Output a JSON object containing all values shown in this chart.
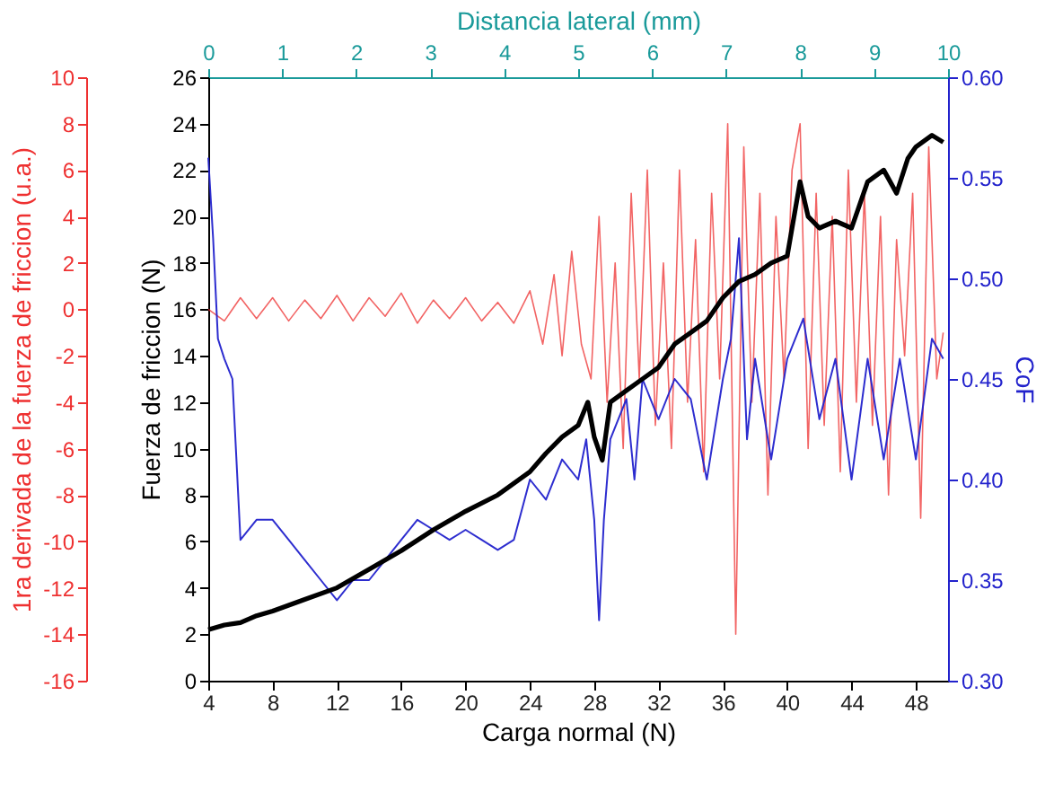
{
  "chart_data": {
    "type": "line",
    "xlabel": "Carga normal (N)",
    "x2label": "Distancia lateral (mm)",
    "ylabel": "Fuerza de friccion (N)",
    "y2label": "CoF",
    "y3label": "1ra derivada de la fuerza de friccion (u.a.)",
    "xlim": [
      4,
      50
    ],
    "xticks": [
      4,
      8,
      12,
      16,
      20,
      24,
      28,
      32,
      36,
      40,
      44,
      48
    ],
    "x2lim": [
      0,
      10
    ],
    "x2ticks": [
      0,
      1,
      2,
      3,
      4,
      5,
      6,
      7,
      8,
      9,
      10
    ],
    "ylim": [
      0,
      26
    ],
    "yticks": [
      0,
      2,
      4,
      6,
      8,
      10,
      12,
      14,
      16,
      18,
      20,
      22,
      24,
      26
    ],
    "y2lim": [
      0.3,
      0.6
    ],
    "y2ticks": [
      {
        "value": 0.3,
        "label": "0.30"
      },
      {
        "value": 0.35,
        "label": "0.35"
      },
      {
        "value": 0.4,
        "label": "0.40"
      },
      {
        "value": 0.45,
        "label": "0.45"
      },
      {
        "value": 0.5,
        "label": "0.50"
      },
      {
        "value": 0.55,
        "label": "0.55"
      },
      {
        "value": 0.6,
        "label": "0.60"
      }
    ],
    "y3lim": [
      -16,
      10
    ],
    "y3ticks": [
      -16,
      -14,
      -12,
      -10,
      -8,
      -6,
      -4,
      -2,
      0,
      2,
      4,
      6,
      8,
      10
    ],
    "grid": false,
    "marker": "none",
    "line_style": "solid",
    "series": [
      {
        "color": "#ee3030",
        "axis": "y3",
        "x": [
          4,
          5,
          6,
          7,
          8,
          9,
          10,
          11,
          12,
          13,
          14,
          15,
          16,
          17,
          18,
          19,
          20,
          21,
          22,
          23,
          24,
          24.8,
          25.5,
          26,
          26.6,
          27.2,
          27.8,
          28.3,
          28.8,
          29.3,
          29.8,
          30.3,
          30.8,
          31.3,
          31.8,
          32.3,
          32.8,
          33.3,
          33.8,
          34.3,
          34.8,
          35.3,
          35.8,
          36.3,
          36.8,
          37.3,
          37.8,
          38.3,
          38.8,
          39.3,
          39.8,
          40.3,
          40.8,
          41.3,
          41.8,
          42.3,
          42.8,
          43.3,
          43.8,
          44.3,
          44.8,
          45.3,
          45.8,
          46.3,
          46.8,
          47.3,
          47.8,
          48.3,
          48.8,
          49.3,
          49.7
        ],
        "values": [
          0,
          -0.5,
          0.5,
          -0.4,
          0.5,
          -0.5,
          0.4,
          -0.4,
          0.6,
          -0.5,
          0.5,
          -0.3,
          0.7,
          -0.6,
          0.4,
          -0.4,
          0.5,
          -0.5,
          0.3,
          -0.6,
          0.8,
          -1.5,
          1.5,
          -2,
          2.5,
          -1.5,
          -3,
          4,
          -4,
          2,
          -6,
          5,
          -3,
          6,
          -5,
          2,
          -6,
          6,
          -4,
          3,
          -7,
          5,
          -3,
          8,
          -14,
          7,
          -4,
          5,
          -8,
          4,
          -3,
          6,
          8,
          -6,
          5,
          -5,
          4,
          -7,
          6,
          -4,
          5,
          -5,
          4,
          -8,
          3,
          -2,
          5,
          -9,
          7,
          -3,
          -1
        ]
      },
      {
        "color": "#2222cc",
        "axis": "y2",
        "x": [
          4,
          4.3,
          4.6,
          5,
          5.5,
          6,
          7,
          8,
          9,
          10,
          11,
          12,
          13,
          14,
          15,
          16,
          17,
          18,
          19,
          20,
          21,
          22,
          23,
          24,
          25,
          26,
          27,
          27.5,
          28,
          28.3,
          28.6,
          29,
          30,
          30.5,
          31,
          32,
          33,
          34,
          35,
          36,
          36.5,
          37,
          37.5,
          38,
          39,
          40,
          41,
          42,
          43,
          44,
          45,
          46,
          47,
          48,
          49,
          49.7
        ],
        "values": [
          0.56,
          0.52,
          0.47,
          0.46,
          0.45,
          0.37,
          0.38,
          0.38,
          0.37,
          0.36,
          0.35,
          0.34,
          0.35,
          0.35,
          0.36,
          0.37,
          0.38,
          0.375,
          0.37,
          0.375,
          0.37,
          0.365,
          0.37,
          0.4,
          0.39,
          0.41,
          0.4,
          0.42,
          0.38,
          0.33,
          0.38,
          0.42,
          0.44,
          0.4,
          0.45,
          0.43,
          0.45,
          0.44,
          0.4,
          0.45,
          0.47,
          0.52,
          0.42,
          0.46,
          0.41,
          0.46,
          0.48,
          0.43,
          0.46,
          0.4,
          0.46,
          0.41,
          0.46,
          0.41,
          0.47,
          0.46
        ]
      },
      {
        "color": "#000000",
        "axis": "y",
        "x": [
          4,
          5,
          6,
          7,
          8,
          10,
          12,
          14,
          16,
          18,
          20,
          22,
          24,
          25,
          26,
          27,
          27.6,
          28,
          28.5,
          29,
          30,
          31,
          32,
          33,
          34,
          35,
          36,
          37,
          38,
          39,
          40,
          40.8,
          41.3,
          42,
          43,
          44,
          45,
          46,
          46.8,
          47.5,
          48,
          49,
          49.7
        ],
        "values": [
          2.2,
          2.4,
          2.5,
          2.8,
          3,
          3.5,
          4,
          4.8,
          5.6,
          6.5,
          7.3,
          8,
          9,
          9.8,
          10.5,
          11,
          12,
          10.5,
          9.5,
          12,
          12.5,
          13,
          13.5,
          14.5,
          15,
          15.5,
          16.5,
          17.2,
          17.5,
          18,
          18.3,
          21.5,
          20,
          19.5,
          19.8,
          19.5,
          21.5,
          22,
          21,
          22.5,
          23,
          23.5,
          23.2
        ]
      }
    ]
  }
}
